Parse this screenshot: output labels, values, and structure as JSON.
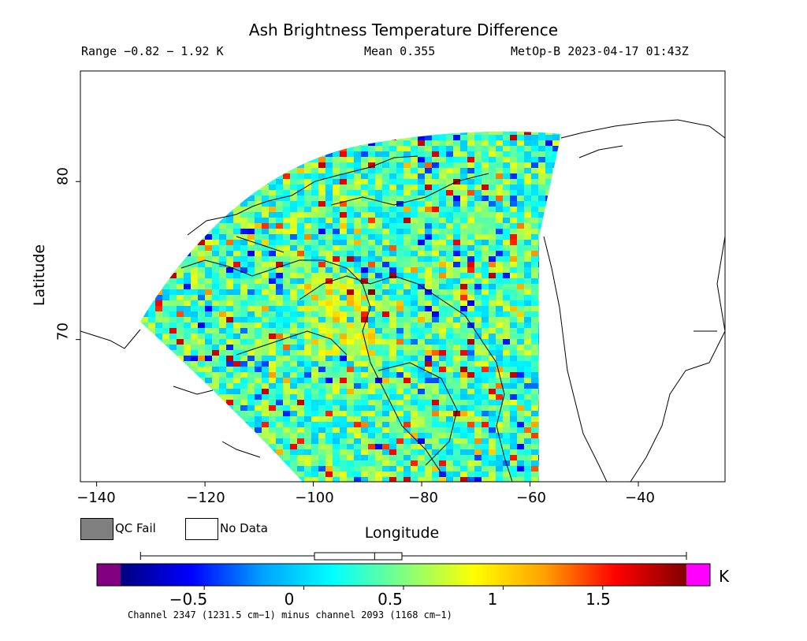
{
  "header": {
    "title": "Ash Brightness Temperature Difference",
    "range": "Range −0.82 − 1.92 K",
    "mean": "Mean 0.355",
    "satellite": "MetOp-B 2023-04-17 01:43Z"
  },
  "legend": {
    "qc_fail": "QC Fail",
    "no_data": "No Data",
    "qc_fail_color": "#808080",
    "no_data_color": "#ffffff"
  },
  "colorbar": {
    "unit": "K",
    "min_value": -0.82,
    "max_value": 1.92,
    "mean_value": 0.355,
    "underflow_color": "#800080",
    "overflow_color": "#ff00ff",
    "stops": [
      "#000080",
      "#0000ff",
      "#00a0ff",
      "#00ffff",
      "#80ff80",
      "#ffff00",
      "#ffa000",
      "#ff0000",
      "#800000"
    ],
    "tick_labels": [
      "−0.5",
      "0",
      "0.5",
      "1",
      "1.5"
    ]
  },
  "footer": "Channel 2347 (1231.5 cm−1) minus channel 2093 (1168 cm−1)",
  "chart_data": {
    "type": "heatmap",
    "title": "Ash Brightness Temperature Difference",
    "xlabel": "Longitude",
    "ylabel": "Latitude",
    "xlim": [
      -143,
      -24
    ],
    "ylim": [
      61,
      87
    ],
    "x_ticks": [
      -140,
      -120,
      -100,
      -80,
      -60,
      -40
    ],
    "x_tick_labels": [
      "−140",
      "−120",
      "−100",
      "−80",
      "−60",
      "−40"
    ],
    "y_ticks": [
      70,
      80
    ],
    "y_tick_labels": [
      "70",
      "80"
    ],
    "value_range": [
      -0.82,
      1.92
    ],
    "mean": 0.355,
    "units": "K",
    "colorscale_range": [
      -0.92,
      1.92
    ],
    "colorbar_ticks": [
      -0.5,
      0,
      0.5,
      1,
      1.5
    ]
  }
}
